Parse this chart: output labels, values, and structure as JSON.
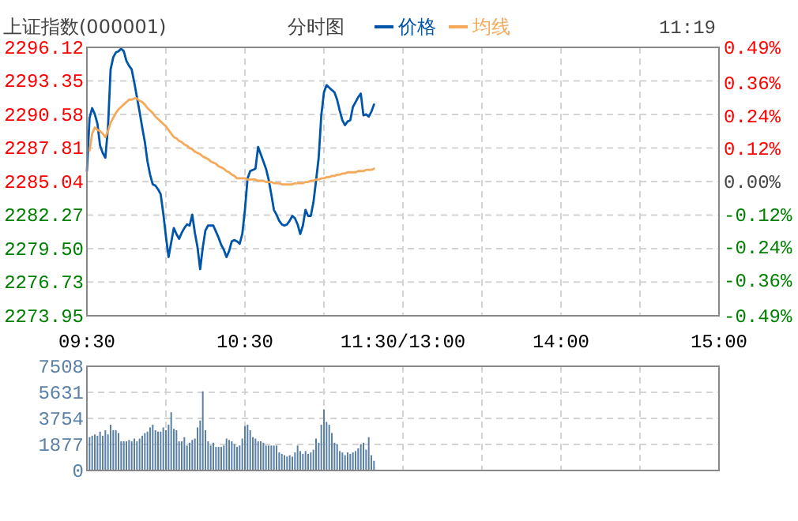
{
  "chart_data": [
    {
      "type": "line",
      "title": "上证指数(000001)",
      "subtitle": "分时图",
      "annotations": [
        "11:19"
      ],
      "legend": "top",
      "grid": true,
      "line_style": "solid",
      "categories": [
        "09:30",
        null,
        null,
        null,
        null,
        null,
        null,
        null,
        null,
        null,
        null,
        null,
        null,
        null,
        null,
        null,
        null,
        null,
        null,
        null,
        null,
        null,
        null,
        null,
        null,
        null,
        null,
        null,
        null,
        null,
        null,
        null,
        null,
        null,
        null,
        null,
        null,
        null,
        null,
        null,
        null,
        null,
        null,
        null,
        null,
        null,
        null,
        null,
        null,
        null,
        null,
        null,
        null,
        null,
        null,
        null,
        null,
        null,
        null,
        null,
        "10:30",
        null,
        null,
        null,
        null,
        null,
        null,
        null,
        null,
        null,
        null,
        null,
        null,
        null,
        null,
        null,
        null,
        null,
        null,
        null,
        null,
        null,
        null,
        null,
        null,
        null,
        null,
        null,
        null,
        null,
        null,
        null,
        null,
        null,
        null,
        null,
        null,
        null,
        null,
        null,
        null,
        null,
        null,
        null,
        null,
        null,
        null,
        null,
        null,
        null,
        null,
        null,
        null,
        null,
        null,
        null,
        null,
        null,
        null,
        null,
        "11:30/13:00",
        null,
        null,
        null,
        null,
        null,
        null,
        null,
        null,
        null,
        null,
        null,
        null,
        null,
        null,
        null,
        null,
        null,
        null,
        null,
        null,
        null,
        null,
        null,
        null,
        null,
        null,
        null,
        null,
        null,
        null,
        null,
        null,
        null,
        null,
        null,
        null,
        null,
        null,
        null,
        null,
        null,
        null,
        null,
        null,
        null,
        null,
        null,
        null,
        null,
        null,
        null,
        null,
        null,
        null,
        null,
        null,
        null,
        null,
        null,
        "14:00",
        null,
        null,
        null,
        null,
        null,
        null,
        null,
        null,
        null,
        null,
        null,
        null,
        null,
        null,
        null,
        null,
        null,
        null,
        null,
        null,
        null,
        null,
        null,
        null,
        null,
        null,
        null,
        null,
        null,
        null,
        null,
        null,
        null,
        null,
        null,
        null,
        null,
        null,
        null,
        null,
        null,
        null,
        null,
        null,
        null,
        null,
        null,
        null,
        null,
        null,
        null,
        null,
        null,
        null,
        null,
        null,
        null,
        null,
        null,
        "15:00"
      ],
      "ylim": [
        2273.95,
        2296.12
      ],
      "yticks": [
        2273.95,
        2276.73,
        {
          "value": 2279.5,
          "label": "2279.50"
        },
        2282.27,
        2285.04,
        2287.81,
        2290.58,
        2293.35,
        2296.12
      ],
      "y2lim": [
        -0.49,
        0.49
      ],
      "y2ticks": [
        {
          "value": -0.49,
          "label": "-0.49%"
        },
        {
          "value": -0.36,
          "label": "-0.36%"
        },
        {
          "value": -0.24,
          "label": "-0.24%"
        },
        {
          "value": -0.12,
          "label": "-0.12%"
        },
        {
          "value": 0,
          "label": "0.00%"
        },
        {
          "value": 0.12,
          "label": "0.12%"
        },
        {
          "value": 0.24,
          "label": "0.24%"
        },
        {
          "value": 0.36,
          "label": "0.36%"
        },
        {
          "value": 0.49,
          "label": "0.49%"
        }
      ],
      "series": [
        {
          "name": "价格",
          "color": "#0055aa",
          "values": [
            2285.9,
            2290.3,
            2291.1,
            2290.6,
            2289.8,
            2288.0,
            2287.4,
            2287.0,
            2289.5,
            2294.3,
            2295.3,
            2295.7,
            2295.8,
            2296.0,
            2295.8,
            2295.0,
            2294.6,
            2294.3,
            2293.2,
            2292.0,
            2290.8,
            2289.5,
            2288.3,
            2286.7,
            2285.6,
            2284.8,
            2284.7,
            2284.4,
            2284.0,
            2282.4,
            2280.5,
            2278.8,
            2280.0,
            2281.2,
            2280.7,
            2280.3,
            2280.8,
            2281.2,
            2281.5,
            2281.4,
            2282.3,
            2280.8,
            2279.6,
            2277.8,
            2279.6,
            2281.0,
            2281.4,
            2281.4,
            2281.4,
            2280.9,
            2280.4,
            2279.8,
            2279.4,
            2278.8,
            2279.3,
            2280.1,
            2280.2,
            2280.1,
            2279.9,
            2280.7,
            2282.7,
            2285.3,
            2285.9,
            2286.0,
            2286.1,
            2287.9,
            2287.3,
            2286.7,
            2286.1,
            2285.2,
            2284.0,
            2282.7,
            2282.3,
            2281.8,
            2281.5,
            2281.4,
            2281.5,
            2281.8,
            2282.2,
            2282.0,
            2281.5,
            2280.7,
            2281.4,
            2282.7,
            2282.2,
            2282.2,
            2283.3,
            2285.1,
            2287.0,
            2290.5,
            2292.4,
            2293.0,
            2292.8,
            2292.6,
            2292.4,
            2291.8,
            2290.9,
            2290.1,
            2289.7,
            2290.0,
            2290.1,
            2291.2,
            2291.6,
            2292.0,
            2292.3,
            2290.5,
            2290.6,
            2290.4,
            2290.8,
            2291.4,
            null,
            null,
            null,
            null,
            null,
            null,
            null,
            null,
            null,
            null,
            null,
            null,
            null,
            null,
            null,
            null,
            null,
            null,
            null,
            null,
            null,
            null,
            null,
            null,
            null,
            null,
            null,
            null,
            null,
            null,
            null,
            null,
            null,
            null,
            null,
            null,
            null,
            null,
            null,
            null,
            null,
            null,
            null,
            null,
            null,
            null,
            null,
            null,
            null,
            null,
            null,
            null,
            null,
            null,
            null,
            null,
            null,
            null,
            null,
            null,
            null,
            null,
            null,
            null,
            null,
            null,
            null,
            null,
            null,
            null,
            null,
            null,
            null,
            null,
            null,
            null,
            null,
            null,
            null,
            null,
            null,
            null,
            null,
            null,
            null,
            null,
            null,
            null,
            null,
            null,
            null,
            null,
            null,
            null,
            null,
            null,
            null,
            null,
            null,
            null,
            null,
            null,
            null,
            null,
            null,
            null,
            null,
            null,
            null,
            null,
            null,
            null,
            null,
            null,
            null,
            null,
            null,
            null,
            null,
            null,
            null,
            null,
            null,
            null,
            null,
            null,
            null,
            null,
            null,
            null,
            null
          ]
        },
        {
          "name": "均线",
          "color": "#f5a95a",
          "values": [
            null,
            2287.6,
            2289.0,
            2289.5,
            2289.3,
            2289.2,
            2289.0,
            2288.7,
            2289.2,
            2289.9,
            2290.3,
            2290.7,
            2291.0,
            2291.2,
            2291.4,
            2291.6,
            2291.8,
            2291.8,
            2291.9,
            2291.9,
            2291.7,
            2291.6,
            2291.4,
            2291.1,
            2290.9,
            2290.7,
            2290.4,
            2290.2,
            2290.0,
            2289.8,
            2289.6,
            2289.3,
            2289.0,
            2288.7,
            2288.6,
            2288.4,
            2288.3,
            2288.1,
            2288.0,
            2287.8,
            2287.7,
            2287.5,
            2287.4,
            2287.3,
            2287.1,
            2287.0,
            2286.9,
            2286.7,
            2286.6,
            2286.5,
            2286.3,
            2286.2,
            2286.1,
            2285.9,
            2285.8,
            2285.6,
            2285.5,
            2285.3,
            2285.3,
            2285.3,
            2285.3,
            2285.2,
            2285.2,
            2285.2,
            2285.2,
            2285.1,
            2285.1,
            2285.1,
            2285.0,
            2285.0,
            2285.0,
            2284.9,
            2284.9,
            2284.9,
            2284.8,
            2284.8,
            2284.8,
            2284.8,
            2284.8,
            2284.9,
            2284.9,
            2284.9,
            2284.9,
            2285.0,
            2285.0,
            2285.1,
            2285.1,
            2285.2,
            2285.2,
            2285.3,
            2285.3,
            2285.4,
            2285.4,
            2285.5,
            2285.5,
            2285.6,
            2285.6,
            2285.7,
            2285.7,
            2285.8,
            2285.8,
            2285.8,
            2285.8,
            2285.9,
            2285.9,
            2285.9,
            2286.0,
            2286.0,
            2286.0,
            2286.1,
            null,
            null,
            null,
            null,
            null,
            null,
            null,
            null,
            null,
            null,
            null,
            null,
            null,
            null,
            null,
            null,
            null,
            null,
            null,
            null,
            null,
            null,
            null,
            null,
            null,
            null,
            null,
            null,
            null,
            null,
            null,
            null,
            null,
            null,
            null,
            null,
            null,
            null,
            null,
            null,
            null,
            null,
            null,
            null,
            null,
            null,
            null,
            null,
            null,
            null,
            null,
            null,
            null,
            null,
            null,
            null,
            null,
            null,
            null,
            null,
            null,
            null,
            null,
            null,
            null,
            null,
            null,
            null,
            null,
            null,
            null,
            null,
            null,
            null,
            null,
            null,
            null,
            null,
            null,
            null,
            null,
            null,
            null,
            null,
            null,
            null,
            null,
            null,
            null,
            null,
            null,
            null,
            null,
            null,
            null,
            null,
            null,
            null,
            null,
            null,
            null,
            null,
            null,
            null,
            null,
            null,
            null,
            null,
            null,
            null,
            null,
            null,
            null,
            null,
            null,
            null,
            null,
            null,
            null,
            null,
            null,
            null,
            null,
            null,
            null,
            null,
            null,
            null,
            null,
            null,
            null
          ]
        }
      ]
    },
    {
      "type": "bar",
      "color": "#5b80a8",
      "grid": true,
      "categories": [
        null,
        null,
        null,
        null,
        null,
        null,
        null,
        null,
        null,
        null,
        null,
        null,
        null,
        null,
        null,
        null,
        null,
        null,
        null,
        null,
        null,
        null,
        null,
        null,
        null,
        null,
        null,
        null,
        null,
        null,
        null,
        null,
        null,
        null,
        null,
        null,
        null,
        null,
        null,
        null,
        null,
        null,
        null,
        null,
        null,
        null,
        null,
        null,
        null,
        null,
        null,
        null,
        null,
        null,
        null,
        null,
        null,
        null,
        null,
        null,
        null,
        null,
        null,
        null,
        null,
        null,
        null,
        null,
        null,
        null,
        null,
        null,
        null,
        null,
        null,
        null,
        null,
        null,
        null,
        null,
        null,
        null,
        null,
        null,
        null,
        null,
        null,
        null,
        null,
        null,
        null,
        null,
        null,
        null,
        null,
        null,
        null,
        null,
        null,
        null,
        null,
        null,
        null,
        null,
        null,
        null,
        null,
        null,
        null,
        null,
        null,
        null,
        null,
        null,
        null,
        null,
        null,
        null,
        null,
        null,
        null,
        null,
        null,
        null,
        null,
        null,
        null,
        null,
        null,
        null,
        null,
        null,
        null,
        null,
        null,
        null,
        null,
        null,
        null,
        null,
        null,
        null,
        null,
        null,
        null,
        null,
        null,
        null,
        null,
        null,
        null,
        null,
        null,
        null,
        null,
        null,
        null,
        null,
        null,
        null,
        null,
        null,
        null,
        null,
        null,
        null,
        null,
        null,
        null,
        null,
        null,
        null,
        null,
        null,
        null,
        null,
        null,
        null,
        null,
        null,
        null,
        null,
        null,
        null,
        null,
        null,
        null,
        null,
        null,
        null,
        null,
        null,
        null,
        null,
        null,
        null,
        null,
        null,
        null,
        null,
        null,
        null,
        null,
        null,
        null,
        null,
        null,
        null,
        null,
        null,
        null,
        null,
        null,
        null,
        null,
        null,
        null,
        null,
        null,
        null,
        null,
        null,
        null,
        null,
        null,
        null,
        null,
        null,
        null,
        null,
        null,
        null,
        null,
        null,
        null,
        null,
        null,
        null,
        null,
        null,
        null
      ],
      "ylim": [
        0,
        7508
      ],
      "yticks": [
        0,
        1877,
        3754,
        5631,
        7508
      ],
      "values": [
        null,
        2400,
        2500,
        2600,
        2500,
        2800,
        2500,
        2900,
        2600,
        3300,
        2900,
        2900,
        2700,
        2100,
        2100,
        2100,
        2200,
        2100,
        2300,
        2100,
        2300,
        2500,
        2700,
        2800,
        3100,
        3300,
        2900,
        2800,
        2800,
        3100,
        2900,
        3300,
        4200,
        3000,
        2900,
        2100,
        2100,
        2400,
        1800,
        2000,
        2200,
        2300,
        3100,
        3600,
        5700,
        2900,
        2100,
        1800,
        2000,
        1700,
        1700,
        1700,
        1800,
        2300,
        2200,
        2100,
        1900,
        1700,
        1800,
        2300,
        3200,
        3300,
        2900,
        2400,
        2300,
        2100,
        2100,
        2000,
        1800,
        1800,
        1800,
        1800,
        1800,
        1300,
        1200,
        1100,
        1000,
        1100,
        1000,
        1300,
        1800,
        1400,
        1200,
        1400,
        1200,
        1300,
        1500,
        2300,
        2000,
        3300,
        4400,
        3500,
        3300,
        2700,
        2000,
        1900,
        1400,
        1300,
        1100,
        1300,
        1200,
        1300,
        1400,
        1600,
        1900,
        2000,
        1500,
        2400,
        1100,
        700,
        null,
        null,
        null,
        null,
        null,
        null,
        null,
        null,
        null,
        null,
        null,
        null,
        null,
        null,
        null,
        null,
        null,
        null,
        null,
        null,
        null,
        null,
        null,
        null,
        null,
        null,
        null,
        null,
        null,
        null,
        null,
        null,
        null,
        null,
        null,
        null,
        null,
        null,
        null,
        null,
        null,
        null,
        null,
        null,
        null,
        null,
        null,
        null,
        null,
        null,
        null,
        null,
        null,
        null,
        null,
        null,
        null,
        null,
        null,
        null,
        null,
        null,
        null,
        null,
        null,
        null,
        null,
        null,
        null,
        null,
        null,
        null,
        null,
        null,
        null,
        null,
        null,
        null,
        null,
        null,
        null,
        null,
        null,
        null,
        null,
        null,
        null,
        null,
        null,
        null,
        null,
        null,
        null,
        null,
        null,
        null,
        null,
        null,
        null,
        null,
        null,
        null,
        null,
        null,
        null,
        null,
        null,
        null,
        null,
        null,
        null,
        null,
        null,
        null,
        null,
        null,
        null,
        null,
        null,
        null,
        null,
        null,
        null,
        null,
        null,
        null,
        null,
        null,
        null,
        null,
        null
      ]
    }
  ]
}
